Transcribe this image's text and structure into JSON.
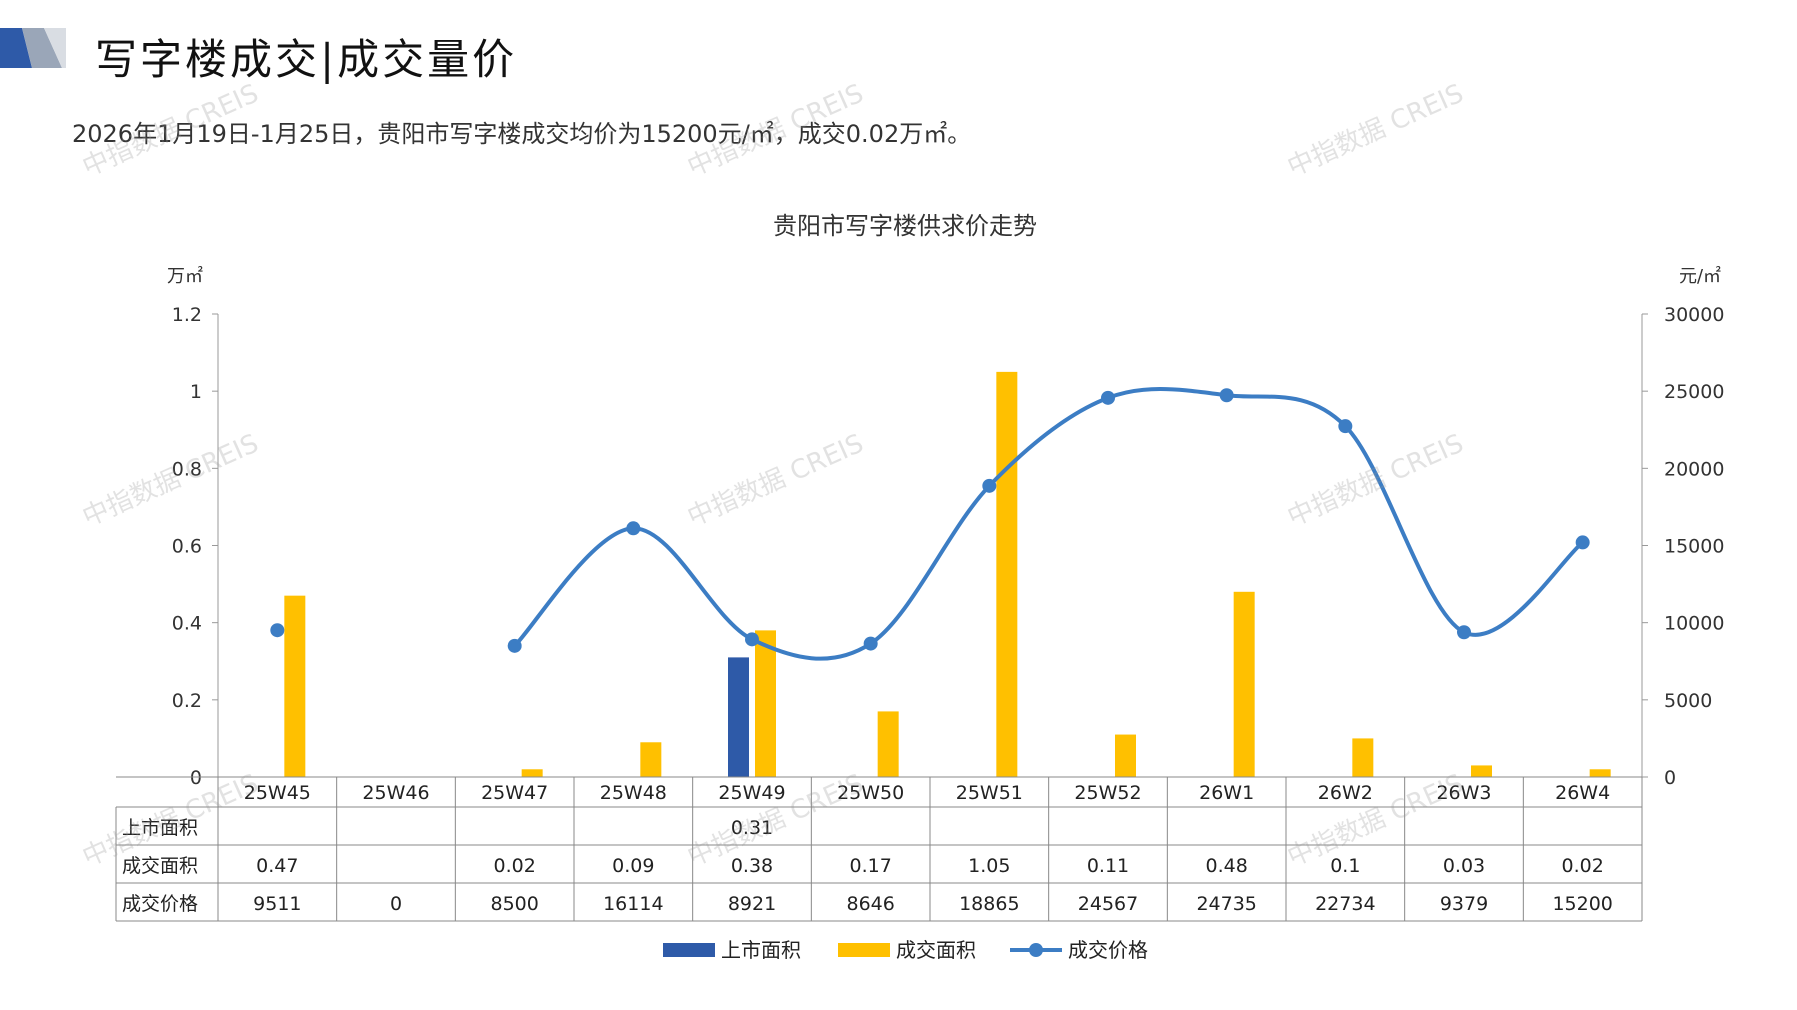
{
  "header": {
    "title": "写字楼成交|成交量价",
    "subtitle": "2026年1月19日-1月25日，贵阳市写字楼成交均价为15200元/㎡，成交0.02万㎡。"
  },
  "watermark": "中指数据 CREIS",
  "colors": {
    "listing": "#2E5AA8",
    "deal_area": "#FFC000",
    "deal_price": "#3C7DC4",
    "axis": "#999999",
    "table_border": "#888888"
  },
  "chart_data": {
    "type": "bar",
    "title": "贵阳市写字楼供求价走势",
    "ylabel_left": "万㎡",
    "ylabel_right": "元/㎡",
    "ylim_left": [
      0,
      1.2
    ],
    "ylim_right": [
      0,
      30000
    ],
    "yticks_left": [
      "0",
      "0.2",
      "0.4",
      "0.6",
      "0.8",
      "1",
      "1.2"
    ],
    "yticks_right": [
      "0",
      "5000",
      "10000",
      "15000",
      "20000",
      "25000",
      "30000"
    ],
    "categories": [
      "25W45",
      "25W46",
      "25W47",
      "25W48",
      "25W49",
      "25W50",
      "25W51",
      "25W52",
      "26W1",
      "26W2",
      "26W3",
      "26W4"
    ],
    "legend_position": "bottom",
    "series": [
      {
        "name": "上市面积",
        "kind": "bar",
        "axis": "left",
        "values": [
          null,
          null,
          null,
          null,
          0.31,
          null,
          null,
          null,
          null,
          null,
          null,
          null
        ],
        "labels": [
          "",
          "",
          "",
          "",
          "0.31",
          "",
          "",
          "",
          "",
          "",
          "",
          ""
        ]
      },
      {
        "name": "成交面积",
        "kind": "bar",
        "axis": "left",
        "values": [
          0.47,
          null,
          0.02,
          0.09,
          0.38,
          0.17,
          1.05,
          0.11,
          0.48,
          0.1,
          0.03,
          0.02
        ],
        "labels": [
          "0.47",
          "",
          "0.02",
          "0.09",
          "0.38",
          "0.17",
          "1.05",
          "0.11",
          "0.48",
          "0.1",
          "0.03",
          "0.02"
        ]
      },
      {
        "name": "成交价格",
        "kind": "line",
        "axis": "right",
        "values": [
          9511,
          0,
          8500,
          16114,
          8921,
          8646,
          18865,
          24567,
          24735,
          22734,
          9379,
          15200
        ],
        "labels": [
          "9511",
          "0",
          "8500",
          "16114",
          "8921",
          "8646",
          "18865",
          "24567",
          "24735",
          "22734",
          "9379",
          "15200"
        ]
      }
    ]
  }
}
